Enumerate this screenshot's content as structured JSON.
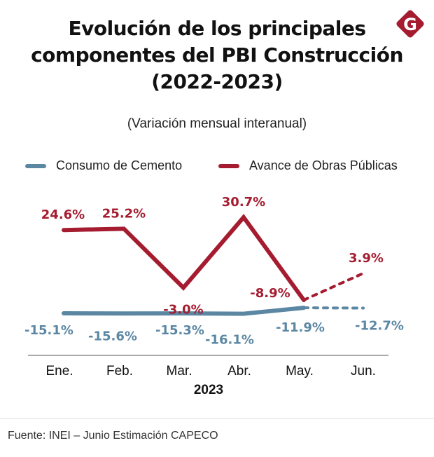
{
  "header": {
    "title_lines": [
      "Evolución de los principales",
      "componentes del PBI Construcción",
      "(2022-2023)"
    ],
    "subtitle": "(Variación mensual interanual)",
    "logo": {
      "icon": "g-diamond-logo-icon",
      "letter": "G",
      "color": "#a51c30"
    }
  },
  "legend": [
    {
      "label": "Consumo de Cemento",
      "color": "#5b87a3"
    },
    {
      "label": "Avance de Obras Públicas",
      "color": "#a51c30"
    }
  ],
  "chart_data": {
    "type": "line",
    "title": "Evolución de los principales componentes del PBI Construcción (2022-2023)",
    "subtitle": "(Variación mensual interanual)",
    "categories": [
      "Ene.",
      "Feb.",
      "Mar.",
      "Abr.",
      "May.",
      "Jun."
    ],
    "xlabel": "2023",
    "ylabel": "",
    "legend_position": "top",
    "grid": false,
    "series": [
      {
        "name": "Consumo de Cemento",
        "color": "#5b87a3",
        "values": [
          -15.1,
          -15.6,
          -15.3,
          -16.1,
          -11.9,
          -12.7
        ],
        "labels": [
          "-15.1%",
          "-15.6%",
          "-15.3%",
          "-16.1%",
          "-11.9%",
          "-12.7%"
        ],
        "projected_from_index": 4
      },
      {
        "name": "Avance de Obras Públicas",
        "color": "#a51c30",
        "values": [
          24.6,
          25.2,
          -3.0,
          30.7,
          -8.9,
          3.9
        ],
        "labels": [
          "24.6%",
          "25.2%",
          "-3.0%",
          "30.7%",
          "-8.9%",
          "3.9%"
        ],
        "projected_from_index": 4
      }
    ]
  },
  "footer": {
    "source": "Fuente: INEI – Junio Estimación CAPECO"
  }
}
